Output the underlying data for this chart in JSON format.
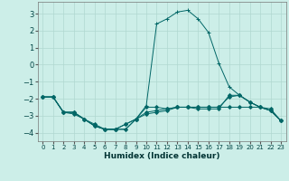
{
  "xlabel": "Humidex (Indice chaleur)",
  "ylabel": "",
  "bg_color": "#cceee8",
  "grid_color": "#b0d8d0",
  "line_color": "#006666",
  "xlim": [
    -0.5,
    23.5
  ],
  "ylim": [
    -4.5,
    3.7
  ],
  "yticks": [
    -4,
    -3,
    -2,
    -1,
    0,
    1,
    2,
    3
  ],
  "xticks": [
    0,
    1,
    2,
    3,
    4,
    5,
    6,
    7,
    8,
    9,
    10,
    11,
    12,
    13,
    14,
    15,
    16,
    17,
    18,
    19,
    20,
    21,
    22,
    23
  ],
  "series": [
    {
      "x": [
        0,
        1,
        2,
        3,
        4,
        5,
        6,
        7,
        8,
        9,
        10,
        11,
        12,
        13,
        14,
        15,
        16,
        17,
        18,
        19,
        20,
        21,
        22,
        23
      ],
      "y": [
        -1.9,
        -1.9,
        -2.8,
        -2.8,
        -3.2,
        -3.6,
        -3.8,
        -3.8,
        -3.8,
        -3.2,
        -2.5,
        -2.5,
        -2.6,
        -2.5,
        -2.5,
        -2.5,
        -2.5,
        -2.5,
        -2.5,
        -2.5,
        -2.5,
        -2.5,
        -2.6,
        -3.3
      ],
      "marker": "D",
      "markersize": 2.0
    },
    {
      "x": [
        0,
        1,
        2,
        3,
        4,
        5,
        6,
        7,
        8,
        9,
        10,
        11,
        12,
        13,
        14,
        15,
        16,
        17,
        18,
        19,
        20,
        21,
        22,
        23
      ],
      "y": [
        -1.9,
        -1.9,
        -2.8,
        -2.8,
        -3.2,
        -3.6,
        -3.8,
        -3.8,
        -3.8,
        -3.2,
        -2.4,
        2.4,
        2.7,
        3.1,
        3.2,
        2.7,
        1.9,
        0.1,
        -1.3,
        -1.8,
        -2.2,
        -2.5,
        -2.7,
        -3.3
      ],
      "marker": "+",
      "markersize": 3.5
    },
    {
      "x": [
        0,
        1,
        2,
        3,
        4,
        5,
        6,
        7,
        8,
        9,
        10,
        11,
        12,
        13,
        14,
        15,
        16,
        17,
        18,
        19,
        20,
        21,
        22,
        23
      ],
      "y": [
        -1.9,
        -1.9,
        -2.8,
        -2.8,
        -3.2,
        -3.6,
        -3.8,
        -3.8,
        -3.5,
        -3.2,
        -2.9,
        -2.8,
        -2.7,
        -2.5,
        -2.5,
        -2.6,
        -2.6,
        -2.6,
        -1.8,
        -1.8,
        -2.2,
        -2.5,
        -2.7,
        -3.3
      ],
      "marker": "D",
      "markersize": 2.0
    },
    {
      "x": [
        0,
        1,
        2,
        3,
        4,
        5,
        6,
        7,
        8,
        9,
        10,
        11,
        12,
        13,
        14,
        15,
        16,
        17,
        18,
        19,
        20,
        21,
        22,
        23
      ],
      "y": [
        -1.9,
        -1.9,
        -2.8,
        -2.9,
        -3.2,
        -3.5,
        -3.8,
        -3.8,
        -3.5,
        -3.2,
        -2.8,
        -2.7,
        -2.6,
        -2.5,
        -2.5,
        -2.5,
        -2.5,
        -2.5,
        -1.9,
        -1.8,
        -2.2,
        -2.5,
        -2.7,
        -3.3
      ],
      "marker": "D",
      "markersize": 2.0
    }
  ]
}
